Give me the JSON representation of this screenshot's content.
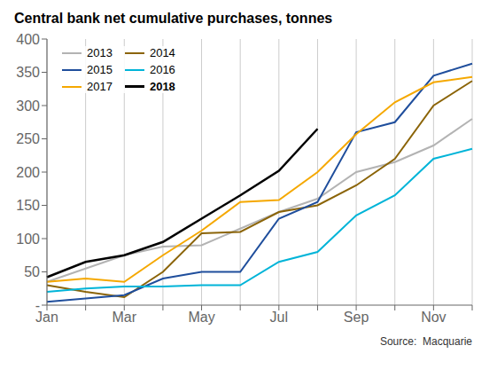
{
  "chart_data": {
    "type": "line",
    "title": "Central bank net cumulative purchases, tonnes",
    "annotations": [
      "Source:  Macquarie"
    ],
    "categories": [
      "Jan",
      null,
      "Mar",
      null,
      "May",
      null,
      "Jul",
      null,
      "Sep",
      null,
      "Nov",
      null
    ],
    "series": [
      {
        "name": "2013",
        "color": "#b3b3b3",
        "values": [
          35,
          55,
          75,
          88,
          90,
          115,
          140,
          160,
          200,
          215,
          240,
          280
        ]
      },
      {
        "name": "2014",
        "color": "#8B6408",
        "values": [
          30,
          20,
          12,
          50,
          108,
          110,
          140,
          150,
          180,
          220,
          300,
          337
        ]
      },
      {
        "name": "2015",
        "color": "#1f4e9c",
        "values": [
          5,
          10,
          15,
          40,
          50,
          50,
          130,
          155,
          260,
          275,
          345,
          363
        ]
      },
      {
        "name": "2016",
        "color": "#00b4d8",
        "values": [
          20,
          25,
          28,
          28,
          30,
          30,
          65,
          80,
          135,
          165,
          220,
          235
        ]
      },
      {
        "name": "2017",
        "color": "#f5a800",
        "values": [
          35,
          40,
          35,
          75,
          112,
          155,
          158,
          200,
          257,
          305,
          335,
          343
        ]
      },
      {
        "name": "2018",
        "color": "#000000",
        "values": [
          42,
          65,
          75,
          95,
          130,
          165,
          202,
          265,
          null,
          null,
          null,
          null
        ]
      }
    ],
    "ylim": [
      0,
      400
    ],
    "yticks": [
      {
        "value": 0,
        "label": "-"
      },
      50,
      100,
      150,
      200,
      250,
      300,
      350,
      400
    ],
    "grid": "x",
    "legend": "upper left"
  }
}
